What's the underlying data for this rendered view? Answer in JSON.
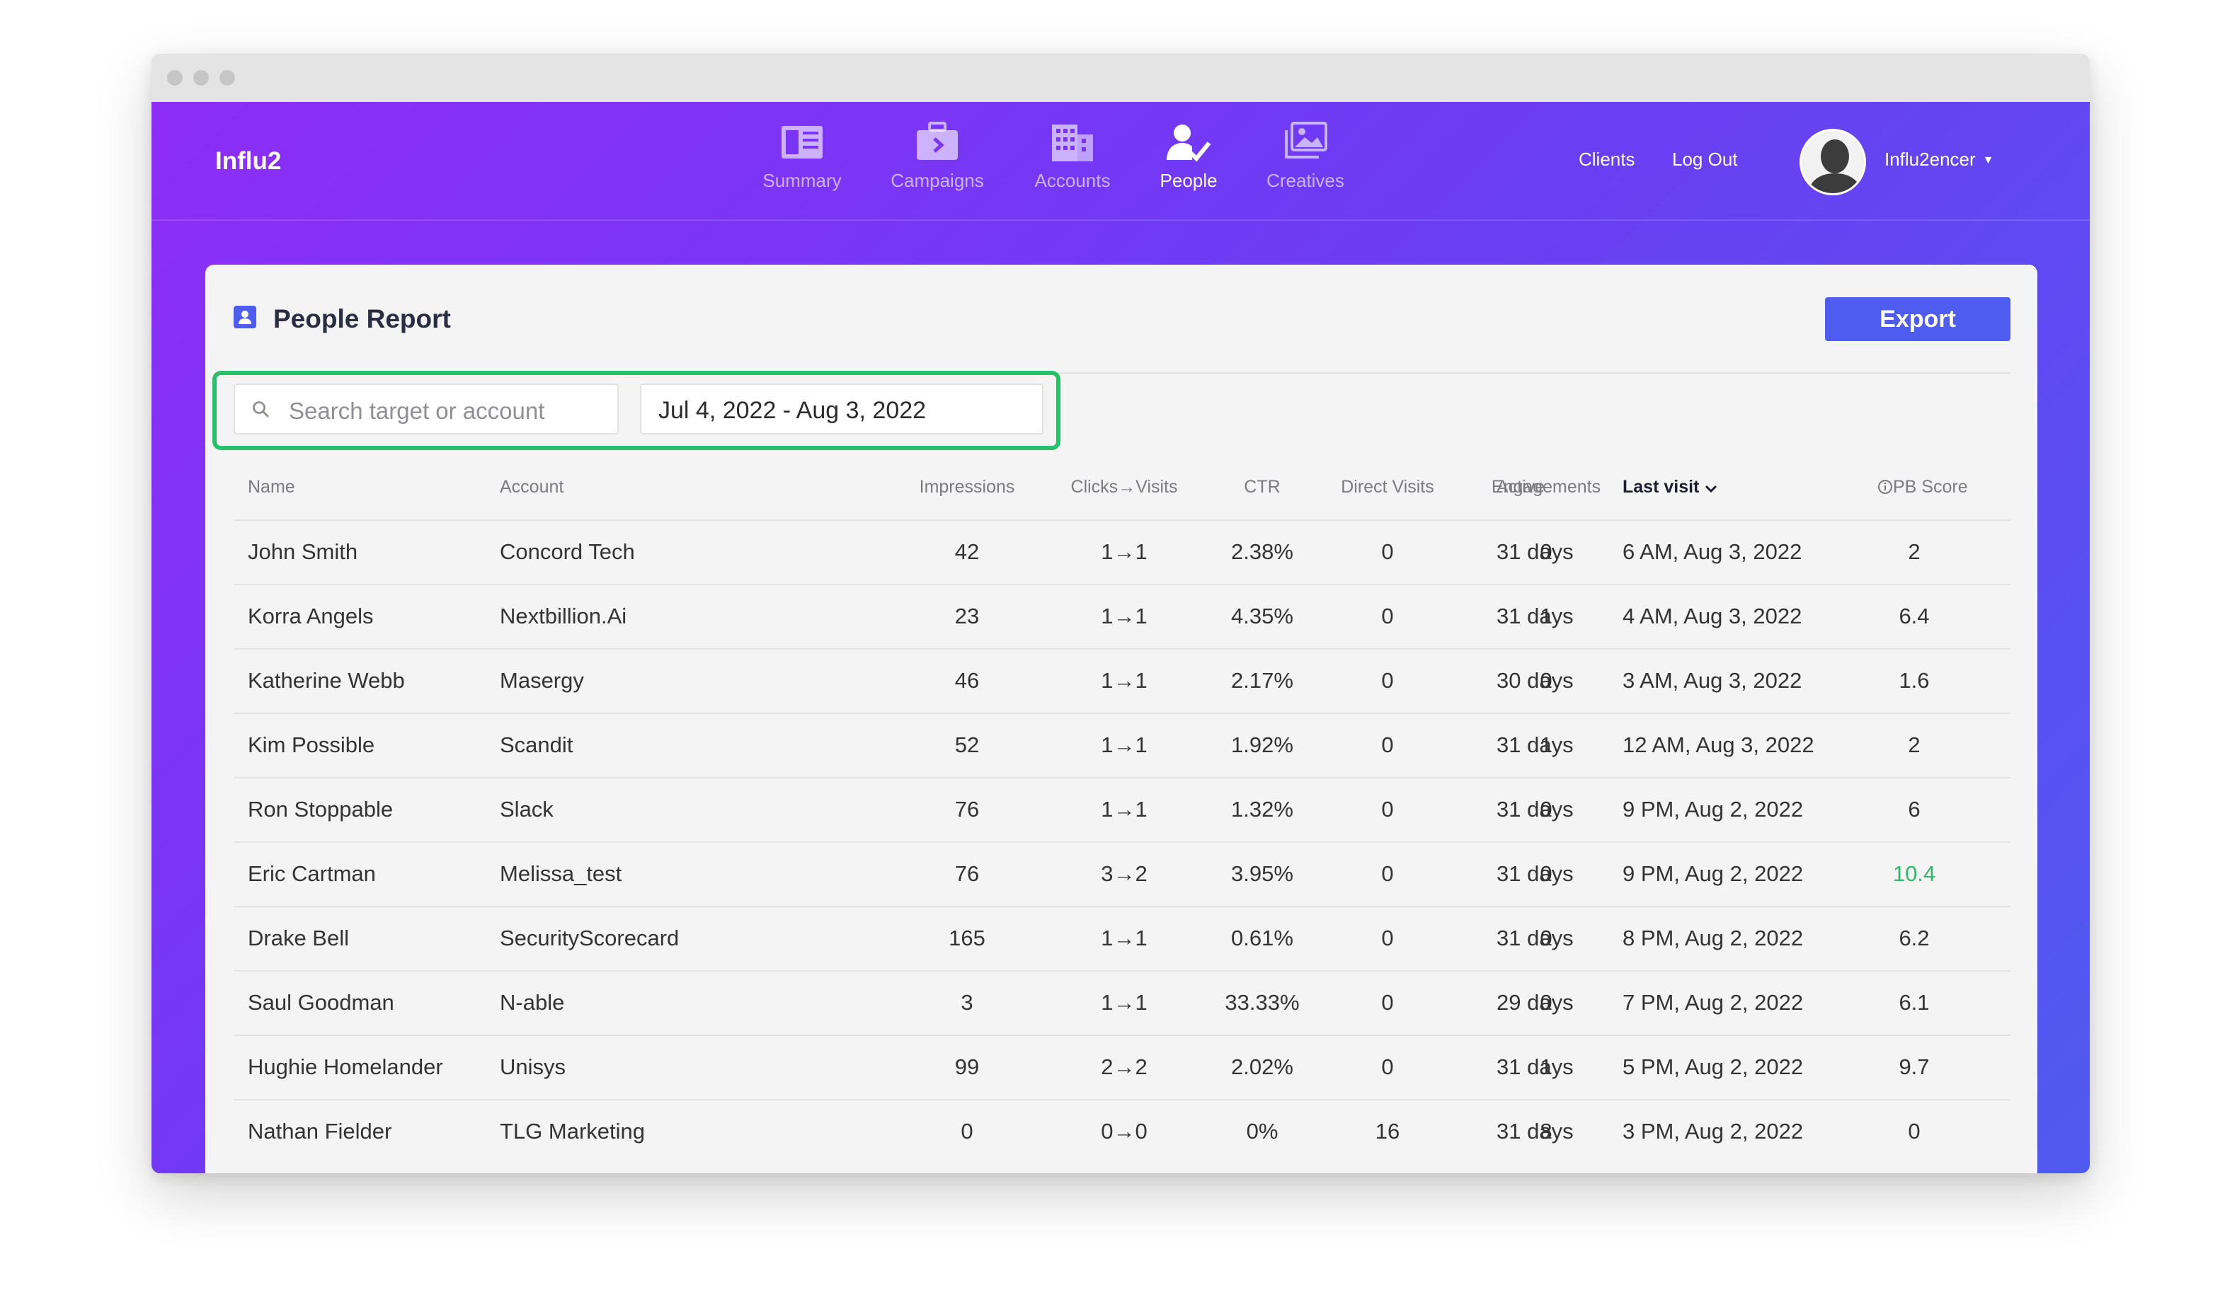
{
  "app": {
    "brand": "Influ2",
    "nav": [
      {
        "label": "Summary",
        "icon": "summary-icon",
        "active": false
      },
      {
        "label": "Campaigns",
        "icon": "briefcase-icon",
        "active": false
      },
      {
        "label": "Accounts",
        "icon": "building-icon",
        "active": false
      },
      {
        "label": "People",
        "icon": "person-check-icon",
        "active": true
      },
      {
        "label": "Creatives",
        "icon": "images-icon",
        "active": false
      }
    ],
    "right_nav": {
      "clients": "Clients",
      "logout": "Log Out",
      "user": "Influ2encer"
    }
  },
  "report": {
    "title": "People Report",
    "export_label": "Export",
    "search_placeholder": "Search target or account",
    "date_range": "Jul 4, 2022 - Aug 3, 2022",
    "highlight_color": "#29c06a",
    "columns": [
      "Name",
      "Account",
      "Impressions",
      "Clicks→Visits",
      "CTR",
      "Direct Visits",
      "Engagements",
      "Active",
      "Last visit",
      "PB Score"
    ],
    "sorted_column": "Last visit",
    "rows": [
      {
        "name": "John Smith",
        "account": "Concord Tech",
        "impressions": "42",
        "clicks_visits": "1→1",
        "ctr": "2.38%",
        "direct_visits": "0",
        "engagements": "0",
        "active": "31 days",
        "last_visit": "6 AM, Aug 3, 2022",
        "pb_score": "2"
      },
      {
        "name": "Korra Angels",
        "account": "Nextbillion.Ai",
        "impressions": "23",
        "clicks_visits": "1→1",
        "ctr": "4.35%",
        "direct_visits": "0",
        "engagements": "1",
        "active": "31 days",
        "last_visit": "4 AM, Aug 3, 2022",
        "pb_score": "6.4"
      },
      {
        "name": "Katherine Webb",
        "account": "Masergy",
        "impressions": "46",
        "clicks_visits": "1→1",
        "ctr": "2.17%",
        "direct_visits": "0",
        "engagements": "0",
        "active": "30 days",
        "last_visit": "3 AM, Aug 3, 2022",
        "pb_score": "1.6"
      },
      {
        "name": "Kim Possible",
        "account": "Scandit",
        "impressions": "52",
        "clicks_visits": "1→1",
        "ctr": "1.92%",
        "direct_visits": "0",
        "engagements": "1",
        "active": "31 days",
        "last_visit": "12 AM, Aug 3, 2022",
        "pb_score": "2"
      },
      {
        "name": "Ron Stoppable",
        "account": "Slack",
        "impressions": "76",
        "clicks_visits": "1→1",
        "ctr": "1.32%",
        "direct_visits": "0",
        "engagements": "0",
        "active": "31 days",
        "last_visit": "9 PM, Aug 2, 2022",
        "pb_score": "6"
      },
      {
        "name": "Eric Cartman",
        "account": "Melissa_test",
        "impressions": "76",
        "clicks_visits": "3→2",
        "ctr": "3.95%",
        "direct_visits": "0",
        "engagements": "0",
        "active": "31 days",
        "last_visit": "9 PM, Aug 2, 2022",
        "pb_score": "10.4",
        "highlight": true
      },
      {
        "name": "Drake Bell",
        "account": "SecurityScorecard",
        "impressions": "165",
        "clicks_visits": "1→1",
        "ctr": "0.61%",
        "direct_visits": "0",
        "engagements": "0",
        "active": "31 days",
        "last_visit": "8 PM, Aug 2, 2022",
        "pb_score": "6.2"
      },
      {
        "name": "Saul Goodman",
        "account": "N-able",
        "impressions": "3",
        "clicks_visits": "1→1",
        "ctr": "33.33%",
        "direct_visits": "0",
        "engagements": "0",
        "active": "29 days",
        "last_visit": "7 PM, Aug 2, 2022",
        "pb_score": "6.1"
      },
      {
        "name": "Hughie Homelander",
        "account": "Unisys",
        "impressions": "99",
        "clicks_visits": "2→2",
        "ctr": "2.02%",
        "direct_visits": "0",
        "engagements": "1",
        "active": "31 days",
        "last_visit": "5 PM, Aug 2, 2022",
        "pb_score": "9.7"
      },
      {
        "name": "Nathan Fielder",
        "account": "TLG Marketing",
        "impressions": "0",
        "clicks_visits": "0→0",
        "ctr": "0%",
        "direct_visits": "16",
        "engagements": "8",
        "active": "31 days",
        "last_visit": "3 PM, Aug 2, 2022",
        "pb_score": "0"
      }
    ]
  }
}
